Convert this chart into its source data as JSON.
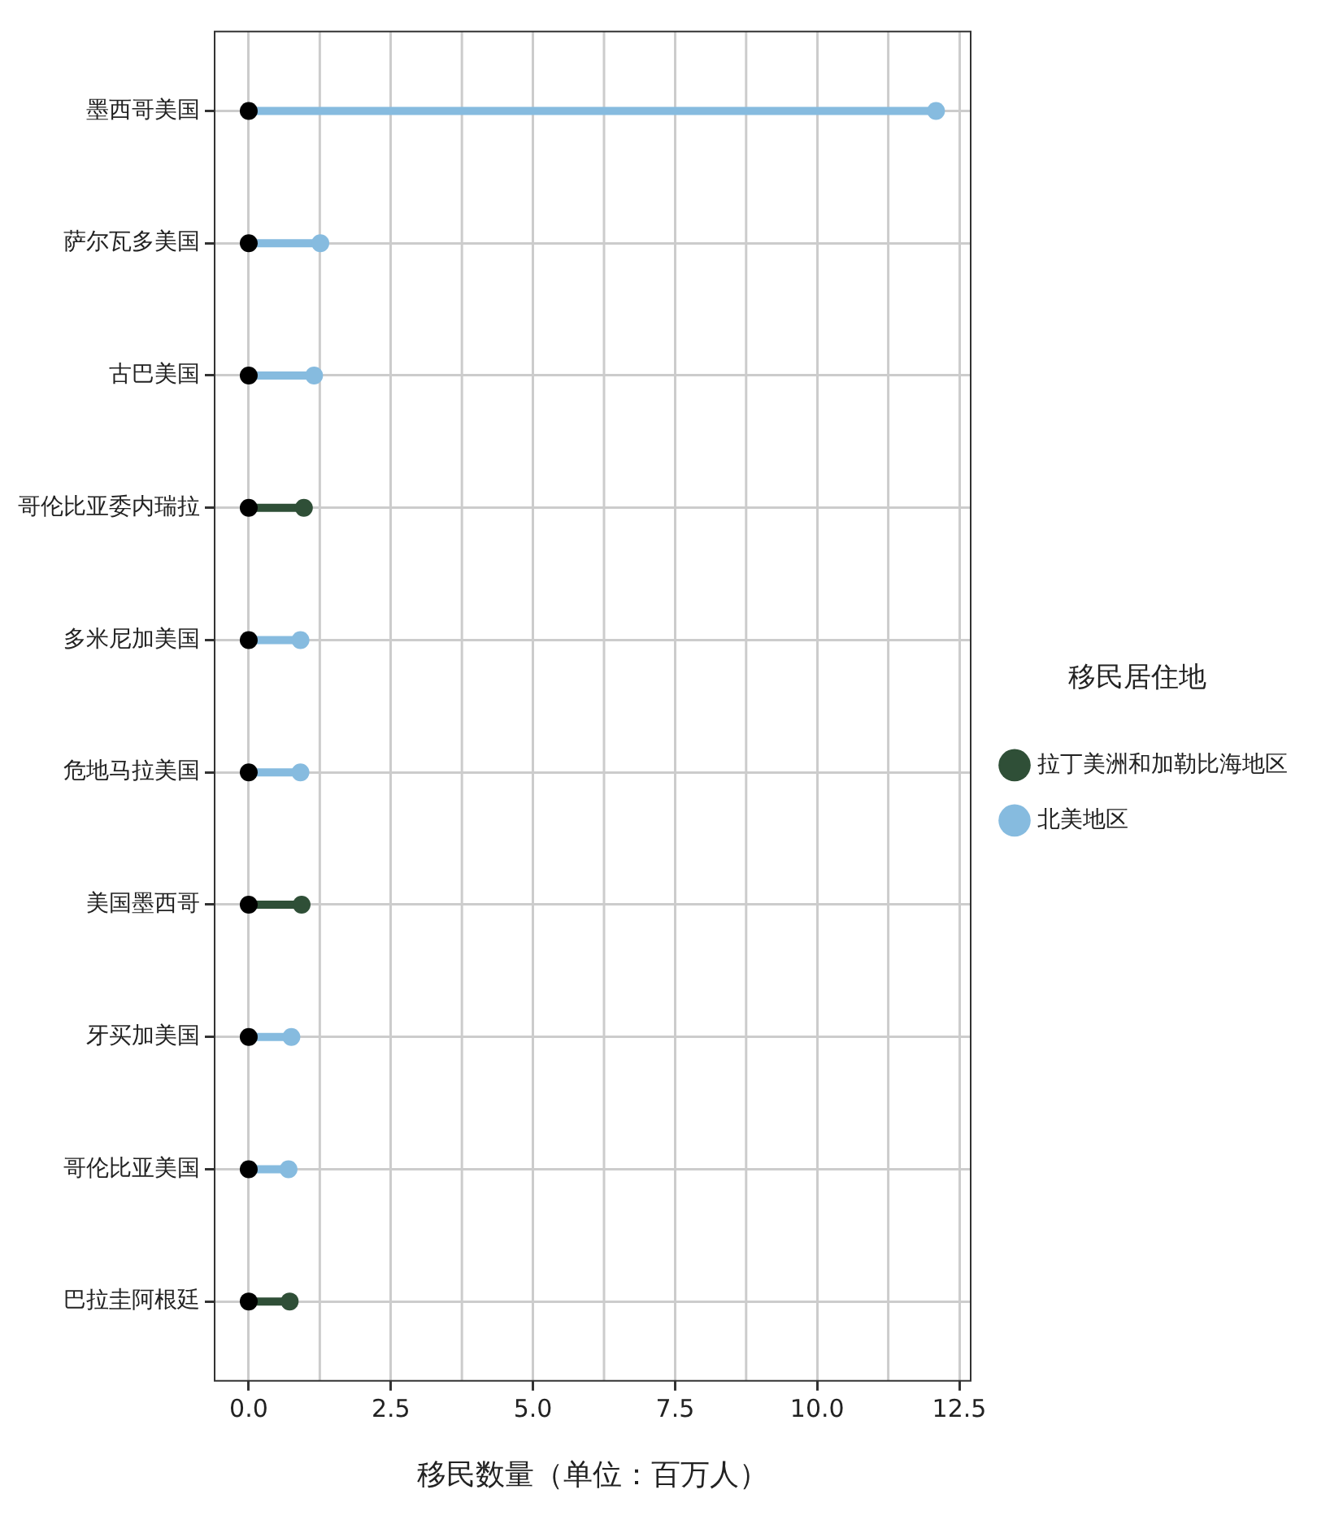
{
  "chart_data": {
    "type": "lollipop",
    "orientation": "horizontal",
    "xlabel": "移民数量（单位：百万人）",
    "legend_title": "移民居住地",
    "legend": "right",
    "grid": true,
    "marker": "circle",
    "categories": [
      "墨西哥美国",
      "萨尔瓦多美国",
      "古巴美国",
      "哥伦比亚委内瑞拉",
      "多米尼加美国",
      "危地马拉美国",
      "美国墨西哥",
      "牙买加美国",
      "哥伦比亚美国",
      "巴拉圭阿根廷"
    ],
    "series": [
      {
        "name": "拉丁美洲和加勒比海地区",
        "color": "#2f4f37",
        "values": [
          null,
          null,
          null,
          0.97,
          null,
          null,
          0.93,
          null,
          null,
          0.72
        ]
      },
      {
        "name": "北美地区",
        "color": "#86bbdf",
        "values": [
          12.09,
          1.26,
          1.15,
          null,
          0.91,
          0.91,
          null,
          0.75,
          0.7,
          null
        ]
      },
      {
        "type": "scatter",
        "color": "#000000",
        "values": [
          0,
          0,
          0,
          0,
          0,
          0,
          0,
          0,
          0,
          0
        ]
      }
    ],
    "xlim": [
      -0.6,
      12.7
    ],
    "xticks": [
      {
        "value": 0,
        "label": "0.0"
      },
      2.5,
      {
        "value": 5,
        "label": "5.0"
      },
      7.5,
      {
        "value": 10,
        "label": "10.0"
      },
      12.5
    ]
  }
}
